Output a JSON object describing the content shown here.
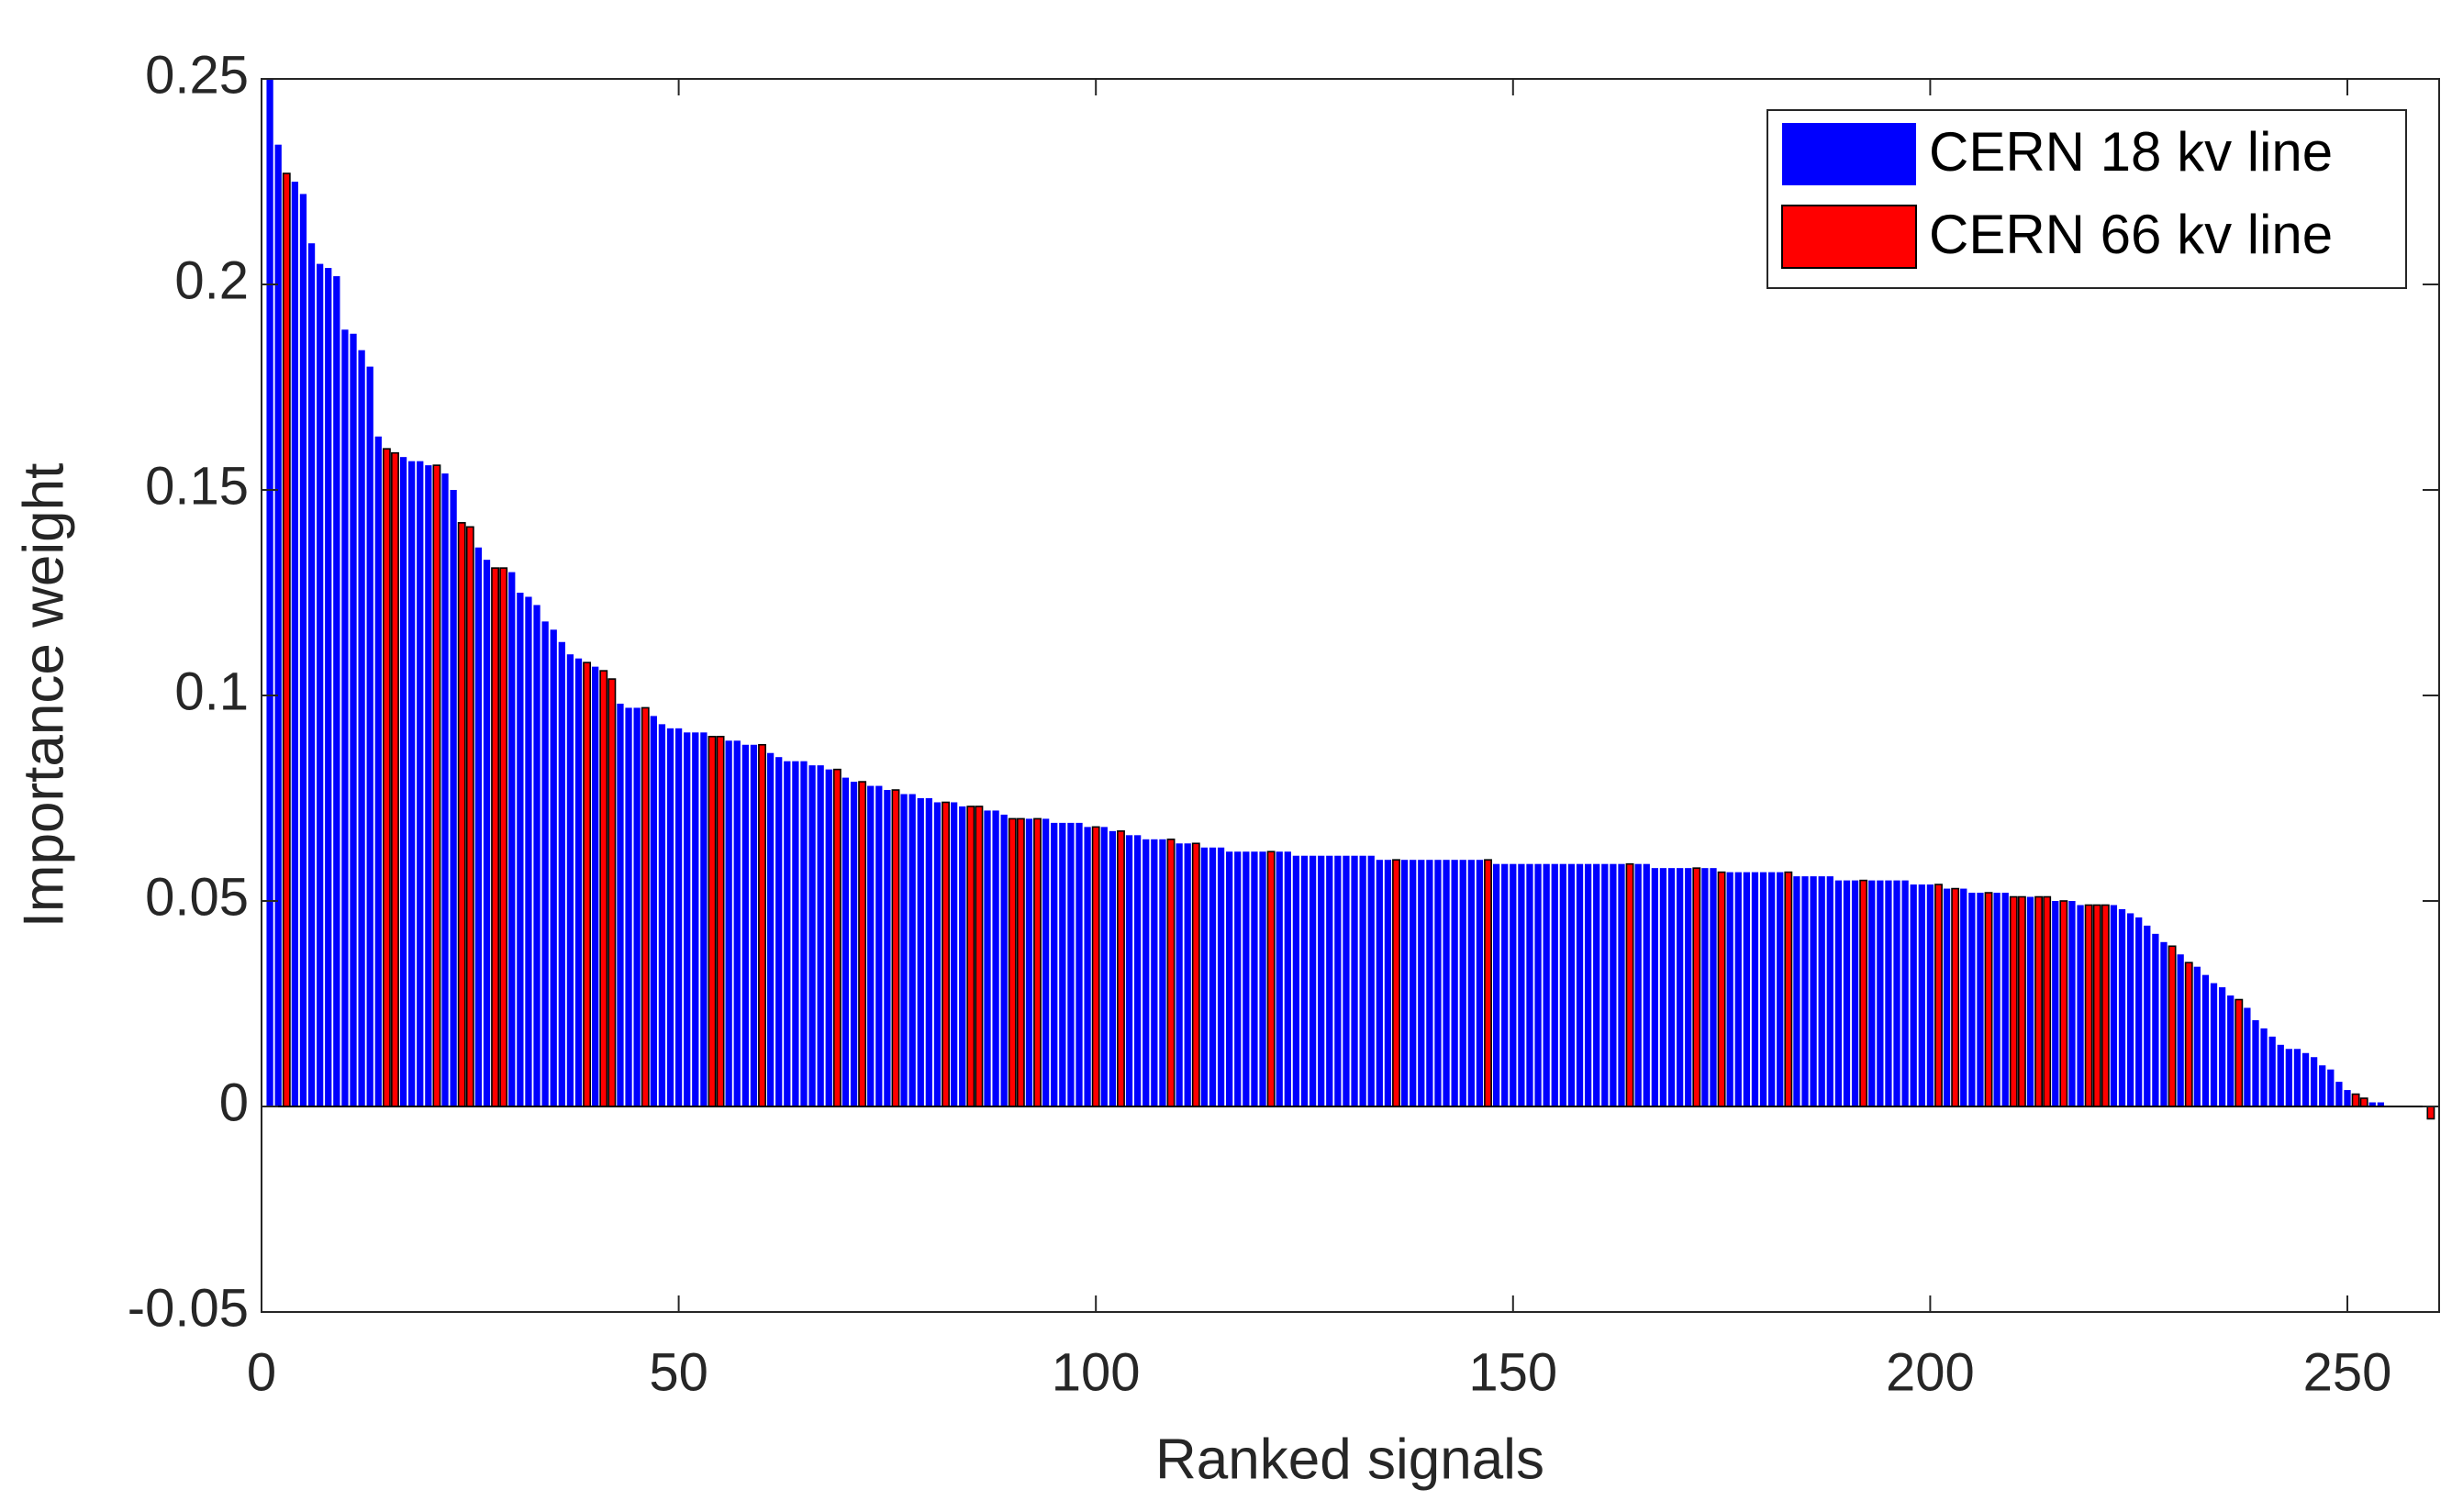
{
  "chart_data": {
    "type": "bar",
    "xlabel": "Ranked signals",
    "ylabel": "Importance weight",
    "xlim": [
      0,
      261
    ],
    "xticks": [
      0,
      50,
      100,
      150,
      200,
      250
    ],
    "ylim": [
      -0.05,
      0.25
    ],
    "yticks": [
      -0.05,
      0,
      0.05,
      0.1,
      0.15,
      0.2,
      0.25
    ],
    "legend": "northeast",
    "series": [
      {
        "name": "CERN 18 kv line",
        "color": "#0000ff",
        "x": [
          1,
          2,
          4,
          5,
          6,
          7,
          8,
          9,
          10,
          11,
          12,
          13,
          14,
          17,
          18,
          19,
          20,
          22,
          23,
          26,
          27,
          30,
          31,
          32,
          33,
          34,
          35,
          36,
          37,
          38,
          40,
          43,
          44,
          45,
          47,
          48,
          49,
          50,
          51,
          52,
          53,
          56,
          57,
          58,
          59,
          61,
          62,
          63,
          64,
          65,
          66,
          67,
          68,
          70,
          71,
          73,
          74,
          75,
          77,
          78,
          79,
          80,
          81,
          83,
          84,
          87,
          88,
          89,
          92,
          94,
          95,
          96,
          97,
          98,
          99,
          101,
          102,
          104,
          105,
          106,
          107,
          108,
          110,
          111,
          113,
          114,
          115,
          116,
          117,
          118,
          119,
          120,
          122,
          123,
          124,
          125,
          126,
          127,
          128,
          129,
          130,
          131,
          132,
          133,
          134,
          135,
          137,
          138,
          139,
          140,
          141,
          142,
          143,
          144,
          145,
          146,
          148,
          149,
          150,
          151,
          152,
          153,
          154,
          155,
          156,
          157,
          158,
          159,
          160,
          161,
          162,
          163,
          165,
          166,
          167,
          168,
          169,
          170,
          171,
          173,
          174,
          176,
          177,
          178,
          179,
          180,
          181,
          182,
          184,
          185,
          186,
          187,
          188,
          189,
          190,
          191,
          193,
          194,
          195,
          196,
          197,
          198,
          199,
          200,
          202,
          204,
          205,
          206,
          208,
          209,
          212,
          215,
          217,
          218,
          222,
          223,
          224,
          225,
          226,
          227,
          228,
          230,
          232,
          233,
          234,
          235,
          236,
          238,
          239,
          240,
          241,
          242,
          243,
          244,
          245,
          246,
          247,
          248,
          249,
          250,
          253,
          254
        ],
        "values": [
          0.25,
          0.234,
          0.225,
          0.222,
          0.21,
          0.205,
          0.204,
          0.202,
          0.189,
          0.188,
          0.184,
          0.18,
          0.163,
          0.158,
          0.157,
          0.157,
          0.156,
          0.154,
          0.15,
          0.136,
          0.133,
          0.13,
          0.125,
          0.124,
          0.122,
          0.118,
          0.116,
          0.113,
          0.11,
          0.109,
          0.107,
          0.098,
          0.097,
          0.097,
          0.095,
          0.093,
          0.092,
          0.092,
          0.091,
          0.091,
          0.091,
          0.089,
          0.089,
          0.088,
          0.088,
          0.086,
          0.085,
          0.084,
          0.084,
          0.084,
          0.083,
          0.083,
          0.082,
          0.08,
          0.079,
          0.078,
          0.078,
          0.077,
          0.076,
          0.076,
          0.075,
          0.075,
          0.074,
          0.074,
          0.073,
          0.072,
          0.072,
          0.071,
          0.07,
          0.07,
          0.069,
          0.069,
          0.069,
          0.069,
          0.068,
          0.068,
          0.067,
          0.066,
          0.066,
          0.065,
          0.065,
          0.065,
          0.064,
          0.064,
          0.063,
          0.063,
          0.063,
          0.062,
          0.062,
          0.062,
          0.062,
          0.062,
          0.062,
          0.062,
          0.061,
          0.061,
          0.061,
          0.061,
          0.061,
          0.061,
          0.061,
          0.061,
          0.061,
          0.061,
          0.06,
          0.06,
          0.06,
          0.06,
          0.06,
          0.06,
          0.06,
          0.06,
          0.06,
          0.06,
          0.06,
          0.06,
          0.059,
          0.059,
          0.059,
          0.059,
          0.059,
          0.059,
          0.059,
          0.059,
          0.059,
          0.059,
          0.059,
          0.059,
          0.059,
          0.059,
          0.059,
          0.059,
          0.059,
          0.059,
          0.058,
          0.058,
          0.058,
          0.058,
          0.058,
          0.058,
          0.058,
          0.057,
          0.057,
          0.057,
          0.057,
          0.057,
          0.057,
          0.057,
          0.056,
          0.056,
          0.056,
          0.056,
          0.056,
          0.055,
          0.055,
          0.055,
          0.055,
          0.055,
          0.055,
          0.055,
          0.055,
          0.054,
          0.054,
          0.054,
          0.053,
          0.053,
          0.052,
          0.052,
          0.052,
          0.052,
          0.051,
          0.05,
          0.05,
          0.049,
          0.049,
          0.048,
          0.047,
          0.046,
          0.044,
          0.042,
          0.04,
          0.037,
          0.034,
          0.032,
          0.03,
          0.029,
          0.027,
          0.024,
          0.021,
          0.019,
          0.017,
          0.015,
          0.014,
          0.014,
          0.013,
          0.012,
          0.01,
          0.009,
          0.006,
          0.004,
          0.001,
          0.001
        ]
      },
      {
        "name": "CERN 66 kv line",
        "color": "#ff0000",
        "x": [
          3,
          15,
          16,
          21,
          24,
          25,
          28,
          29,
          39,
          41,
          42,
          46,
          54,
          55,
          60,
          69,
          72,
          76,
          82,
          85,
          86,
          90,
          91,
          93,
          100,
          103,
          109,
          112,
          121,
          136,
          147,
          164,
          172,
          175,
          183,
          192,
          201,
          203,
          207,
          210,
          211,
          213,
          214,
          216,
          219,
          220,
          221,
          229,
          231,
          237,
          251,
          252,
          260
        ],
        "values": [
          0.227,
          0.16,
          0.159,
          0.156,
          0.142,
          0.141,
          0.131,
          0.131,
          0.108,
          0.106,
          0.104,
          0.097,
          0.09,
          0.09,
          0.088,
          0.082,
          0.079,
          0.077,
          0.074,
          0.073,
          0.073,
          0.07,
          0.07,
          0.07,
          0.068,
          0.067,
          0.065,
          0.064,
          0.062,
          0.06,
          0.06,
          0.059,
          0.058,
          0.057,
          0.057,
          0.055,
          0.054,
          0.053,
          0.052,
          0.051,
          0.051,
          0.051,
          0.051,
          0.05,
          0.049,
          0.049,
          0.049,
          0.039,
          0.035,
          0.026,
          0.003,
          0.002,
          -0.003
        ]
      }
    ]
  }
}
